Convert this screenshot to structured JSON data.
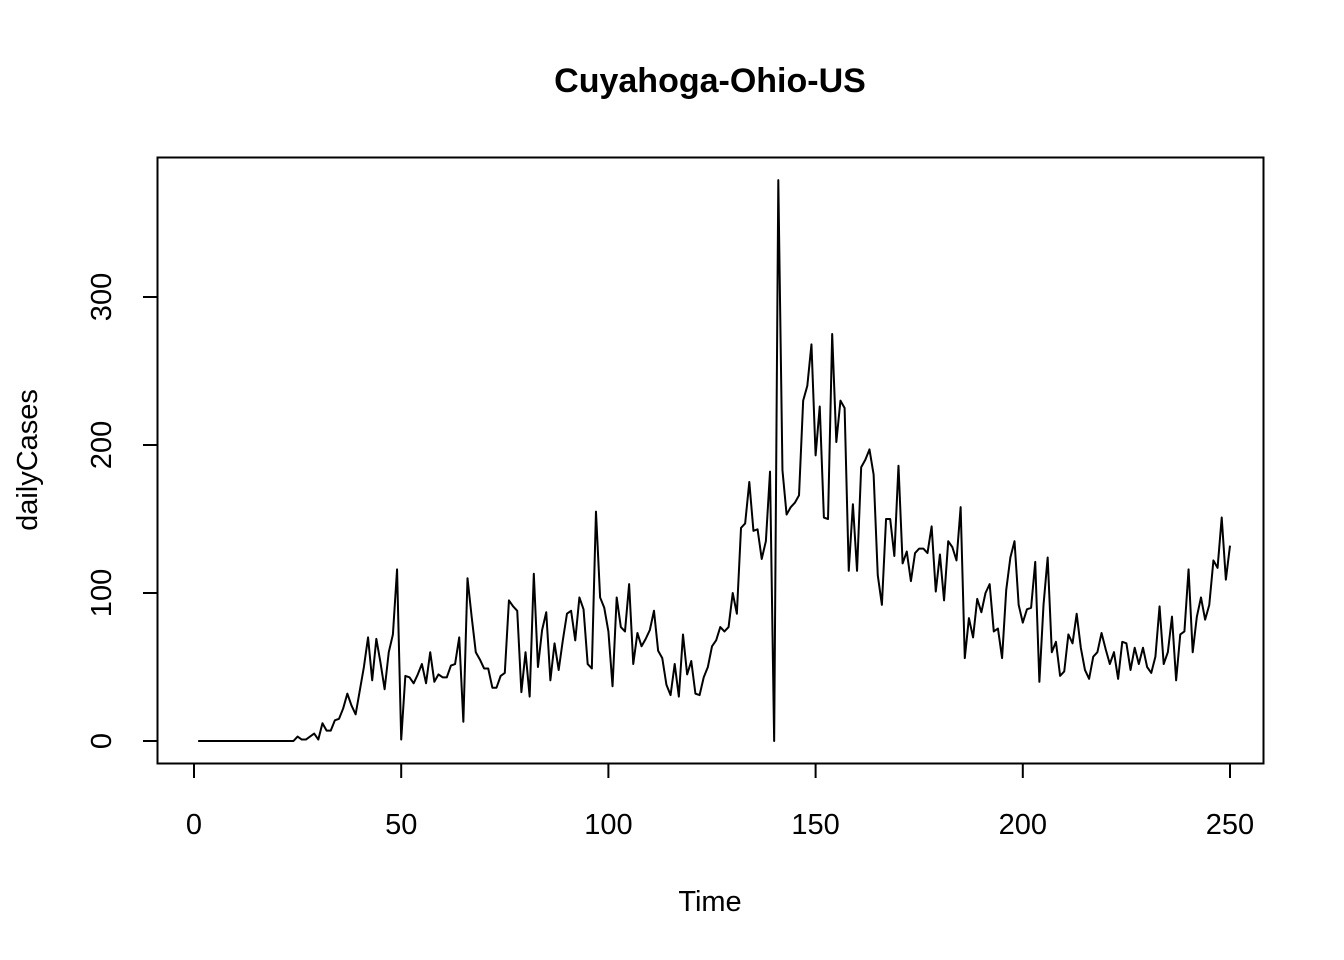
{
  "chart_data": {
    "type": "line",
    "title": "Cuyahoga-Ohio-US",
    "xlabel": "Time",
    "ylabel": "dailyCases",
    "xlim": [
      1,
      248
    ],
    "ylim": [
      0,
      380
    ],
    "x_ticks": [
      0,
      50,
      100,
      150,
      200,
      250
    ],
    "y_ticks": [
      0,
      100,
      200,
      300
    ],
    "x_tick_labels": [
      "0",
      "50",
      "100",
      "150",
      "200",
      "250"
    ],
    "y_tick_labels": [
      "0",
      "100",
      "200",
      "300"
    ],
    "grid": false,
    "legend": "none",
    "line_color": "#000000",
    "series": [
      {
        "x_start": 1,
        "values": [
          0,
          0,
          0,
          0,
          0,
          0,
          0,
          0,
          0,
          0,
          0,
          0,
          0,
          0,
          0,
          0,
          0,
          0,
          0,
          0,
          0,
          0,
          0,
          0,
          3,
          1,
          1,
          3,
          5,
          1,
          12,
          7,
          7,
          14,
          15,
          22,
          32,
          24,
          18,
          34,
          50,
          70,
          41,
          69,
          53,
          35,
          60,
          72,
          116,
          1,
          44,
          43,
          39,
          45,
          52,
          39,
          60,
          40,
          45,
          43,
          43,
          51,
          52,
          70,
          13,
          110,
          84,
          60,
          55,
          49,
          49,
          36,
          36,
          44,
          46,
          95,
          91,
          88,
          33,
          60,
          30,
          113,
          50,
          75,
          87,
          41,
          66,
          48,
          68,
          86,
          88,
          68,
          97,
          89,
          52,
          49,
          155,
          97,
          90,
          74,
          37,
          97,
          77,
          74,
          106,
          52,
          73,
          64,
          69,
          75,
          88,
          61,
          56,
          38,
          31,
          52,
          30,
          72,
          45,
          54,
          32,
          31,
          43,
          50,
          64,
          68,
          77,
          74,
          77,
          100,
          86,
          144,
          147,
          175,
          142,
          143,
          123,
          135,
          182,
          0,
          379,
          183,
          153,
          158,
          161,
          166,
          230,
          240,
          268,
          193,
          226,
          151,
          150,
          275,
          202,
          230,
          225,
          115,
          160,
          115,
          185,
          190,
          197,
          180,
          112,
          92,
          150,
          150,
          125,
          186,
          120,
          128,
          108,
          127,
          130,
          130,
          127,
          145,
          101,
          126,
          95,
          135,
          131,
          122,
          158,
          56,
          83,
          70,
          96,
          87,
          100,
          106,
          74,
          76,
          56,
          102,
          124,
          135,
          92,
          80,
          89,
          90,
          121,
          40,
          92,
          124,
          60,
          67,
          44,
          47,
          72,
          66,
          86,
          63,
          48,
          42,
          57,
          60,
          73,
          62,
          52,
          60,
          42,
          67,
          66,
          48,
          63,
          52,
          63,
          50,
          46,
          57,
          91,
          52,
          60,
          84,
          41,
          72,
          74,
          116,
          60,
          84,
          97,
          82,
          92,
          122,
          117,
          151,
          109,
          132
        ]
      }
    ]
  }
}
